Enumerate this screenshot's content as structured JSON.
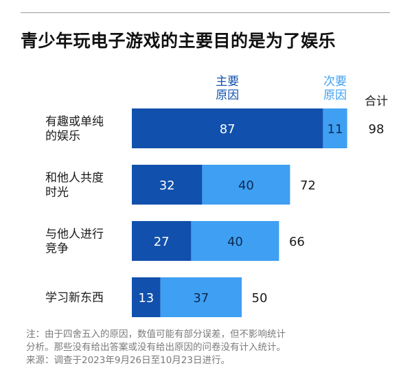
{
  "title": "青少年玩电子游戏的主要目的是为了娱乐",
  "chart_data": {
    "type": "bar",
    "orientation": "horizontal",
    "stacked": true,
    "categories": [
      [
        "有趣或单纯",
        "的娱乐"
      ],
      [
        "和他人共度",
        "时光"
      ],
      [
        "与他人进行",
        "竞争"
      ],
      [
        "学习新东西"
      ]
    ],
    "series": [
      {
        "name": [
          "主要",
          "原因"
        ],
        "values": [
          87,
          32,
          27,
          13
        ],
        "color": "#1150ac"
      },
      {
        "name": [
          "次要",
          "原因"
        ],
        "values": [
          11,
          40,
          40,
          37
        ],
        "color": "#3f9ff2"
      }
    ],
    "totals_label": "合计",
    "totals": [
      98,
      72,
      66,
      50
    ],
    "xlim": [
      0,
      100
    ],
    "grid": false,
    "legend_position": "top, as column headers"
  },
  "footnote": [
    "注：由于四舍五入的原因，数值可能有部分误差，但不影响统计",
    "分析。那些没有给出答案或没有给出原因的问卷没有计入统计。",
    "来源：调查于2023年9月26日至10月23日进行。"
  ]
}
